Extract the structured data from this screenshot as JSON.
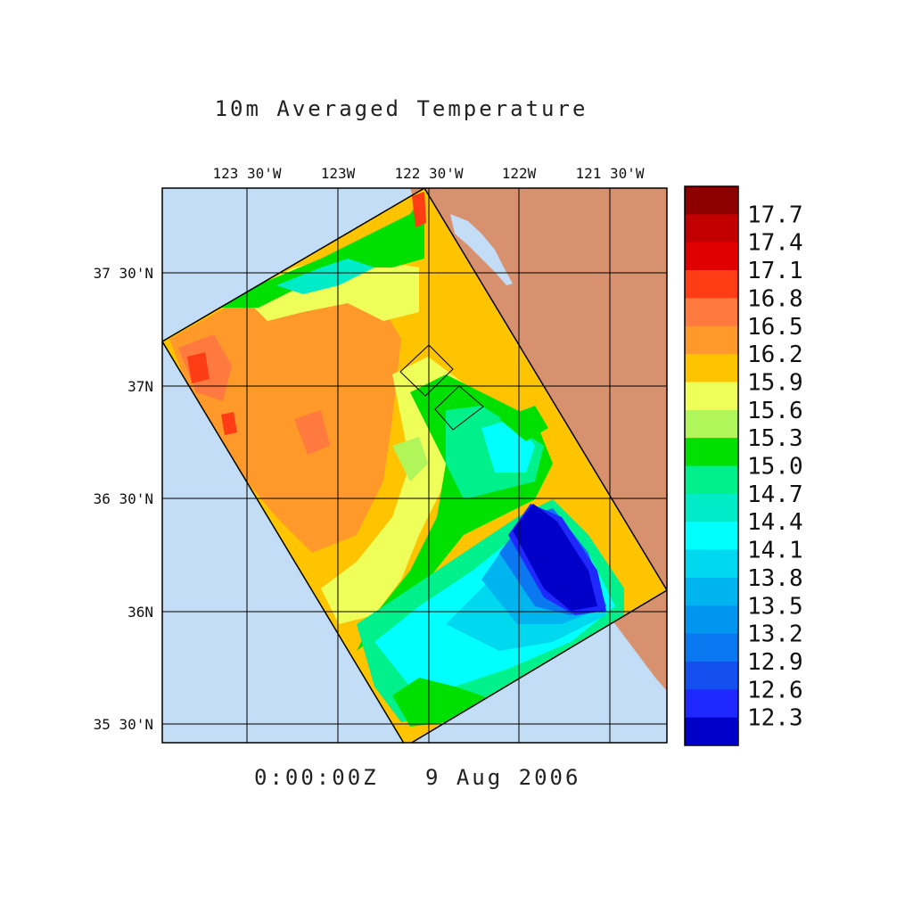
{
  "title": "10m Averaged Temperature",
  "timestamp": "0:00:00Z   9 Aug 2006",
  "lon_labels": [
    "123 30'W",
    "123W",
    "122 30'W",
    "122W",
    "121 30'W"
  ],
  "lat_labels": [
    "37 30'N",
    "37N",
    "36 30'N",
    "36N",
    "35 30'N"
  ],
  "colorbar": {
    "labels": [
      "17.7",
      "17.4",
      "17.1",
      "16.8",
      "16.5",
      "16.2",
      "15.9",
      "15.6",
      "15.3",
      "15.0",
      "14.7",
      "14.4",
      "14.1",
      "13.8",
      "13.5",
      "13.2",
      "12.9",
      "12.6",
      "12.3"
    ],
    "colors": [
      "#8c0000",
      "#c30000",
      "#e00000",
      "#ff3d14",
      "#ff7a3f",
      "#ff9a2a",
      "#ffc400",
      "#eeff5a",
      "#b0f55a",
      "#00e000",
      "#00f08c",
      "#00ecc8",
      "#00ffff",
      "#00d8f0",
      "#00b4f0",
      "#0096f0",
      "#0a78f0",
      "#1450f0",
      "#1e28ff",
      "#0000c8"
    ]
  },
  "colors": {
    "ocean": "#c2ddf5",
    "land": "#d8916e",
    "grid": "#000000"
  }
}
